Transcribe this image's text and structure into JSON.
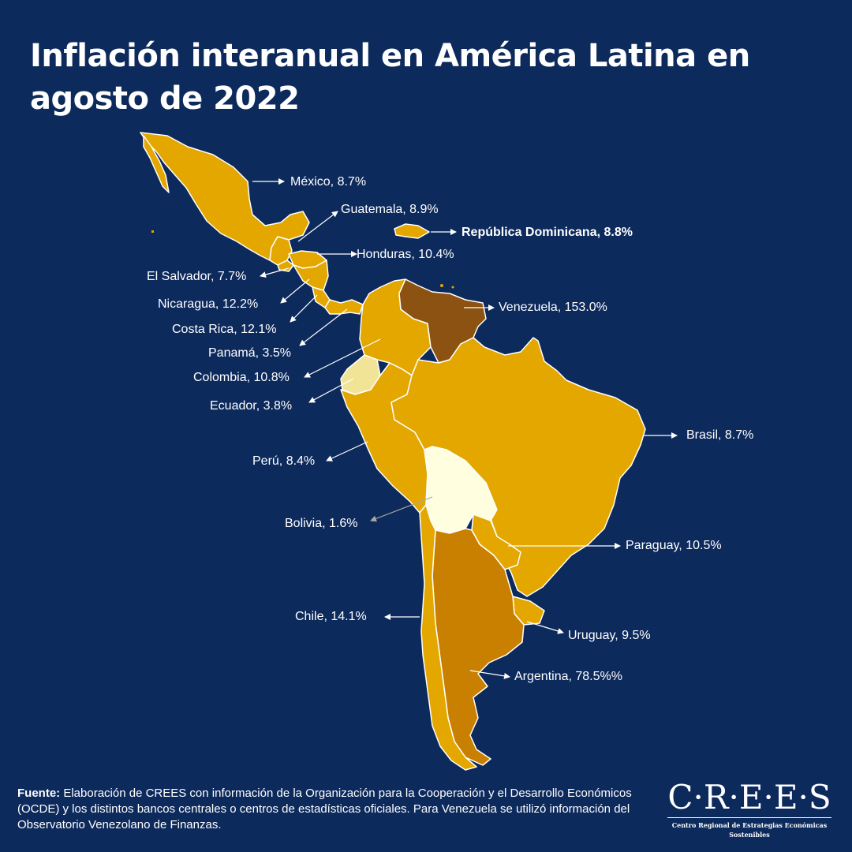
{
  "title": "Inflación interanual en América Latina en agosto de 2022",
  "colors": {
    "background": "#0d2a5c",
    "scale_low": "#ffffe0",
    "scale_light": "#f2e496",
    "scale_mid": "#e3a700",
    "scale_high": "#c98000",
    "scale_max": "#8b5212"
  },
  "labels": {
    "mexico": "México, 8.7%",
    "guatemala": "Guatemala, 8.9%",
    "dominicana": "República Dominicana, 8.8%",
    "honduras": "Honduras, 10.4%",
    "elsalvador": "El Salvador, 7.7%",
    "nicaragua": "Nicaragua, 12.2%",
    "costarica": "Costa Rica, 12.1%",
    "panama": "Panamá, 3.5%",
    "colombia": "Colombia, 10.8%",
    "ecuador": "Ecuador, 3.8%",
    "venezuela": "Venezuela, 153.0%",
    "brasil": "Brasil, 8.7%",
    "peru": "Perú, 8.4%",
    "bolivia": "Bolivia, 1.6%",
    "paraguay": "Paraguay, 10.5%",
    "chile": "Chile, 14.1%",
    "uruguay": "Uruguay, 9.5%",
    "argentina": "Argentina, 78.5%%"
  },
  "footer": {
    "source_label": "Fuente:",
    "source_text": " Elaboración de CREES con información de la Organización para la Cooperación y el Desarrollo Económicos (OCDE) y los distintos bancos centrales o centros de estadísticas oficiales. Para Venezuela se utilizó información del Observatorio Venezolano de Finanzas."
  },
  "logo": {
    "main": "C·R·E·E·S",
    "sub": "Centro Regional de Estrategias Económicas Sostenibles"
  }
}
